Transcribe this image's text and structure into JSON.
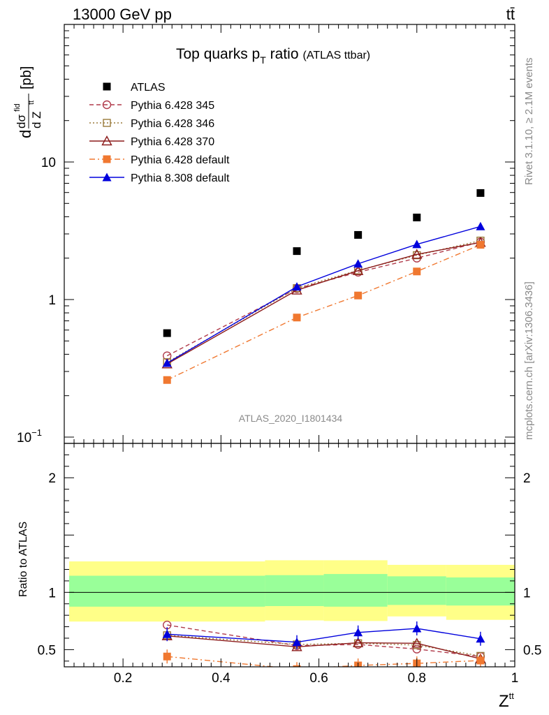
{
  "header": {
    "left": "13000 GeV pp",
    "right": "tt̄"
  },
  "side_text": {
    "rivet": "Rivet 3.1.10, ≥ 2.1M events",
    "mcplots": "mcplots.cern.ch [arXiv:1306.3436]"
  },
  "watermark": "ATLAS_2020_I1801434",
  "chart_data": {
    "type": "scatter",
    "title": "Top quarks p",
    "title_sub": "T",
    "title_tail": " ratio",
    "title_small": "(ATLAS ttbar)",
    "ylabel_main": {
      "pre": "d",
      "sigma": "dσ",
      "sup": "fid",
      "den": "d Z",
      "den_sup": "tt",
      "unit": "[pb]"
    },
    "ylabel_ratio": "Ratio to ATLAS",
    "xlabel": {
      "text": "Z",
      "sup": "tt"
    },
    "yscale_main": "log",
    "ylim_main": [
      0.09,
      100
    ],
    "ylim_ratio": [
      0.35,
      2.3
    ],
    "xlim": [
      0.08,
      1.0
    ],
    "x_ticks": [
      "0.2",
      "0.4",
      "0.6",
      "0.8",
      "1"
    ],
    "y_ticks_main": [
      "10",
      "1"
    ],
    "y_tick_main_low": {
      "base": "10",
      "exp": "−1"
    },
    "y_ticks_ratio": [
      "2",
      "1",
      "0.5"
    ],
    "legend_position": "top-left",
    "bins": [
      {
        "x0": 0.09,
        "x1": 0.49
      },
      {
        "x0": 0.49,
        "x1": 0.61
      },
      {
        "x0": 0.61,
        "x1": 0.74
      },
      {
        "x0": 0.74,
        "x1": 0.86
      },
      {
        "x0": 0.86,
        "x1": 1.0
      }
    ],
    "band_inner": [
      {
        "lo": 0.875,
        "hi": 1.145
      },
      {
        "lo": 0.88,
        "hi": 1.15
      },
      {
        "lo": 0.875,
        "hi": 1.16
      },
      {
        "lo": 0.89,
        "hi": 1.14
      },
      {
        "lo": 0.885,
        "hi": 1.13
      }
    ],
    "band_outer": [
      {
        "lo": 0.745,
        "hi": 1.27
      },
      {
        "lo": 0.755,
        "hi": 1.28
      },
      {
        "lo": 0.75,
        "hi": 1.28
      },
      {
        "lo": 0.79,
        "hi": 1.24
      },
      {
        "lo": 0.76,
        "hi": 1.24
      }
    ],
    "series": [
      {
        "name": "ATLAS",
        "color": "#000000",
        "marker": "square",
        "line": "none",
        "x": [
          0.29,
          0.555,
          0.68,
          0.8,
          0.93
        ],
        "y": [
          0.57,
          2.25,
          2.95,
          3.95,
          5.95
        ],
        "ratio": []
      },
      {
        "name": "Pythia 6.428 345",
        "color": "#b03a4a",
        "marker": "circle-open",
        "line": "dashed",
        "x": [
          0.29,
          0.555,
          0.68,
          0.8,
          0.93
        ],
        "y": [
          0.39,
          1.2,
          1.58,
          2.0,
          2.62
        ],
        "ratio": [
          0.715,
          0.535,
          0.545,
          0.505,
          0.44
        ]
      },
      {
        "name": "Pythia 6.428 346",
        "color": "#9a7a3a",
        "marker": "square-open",
        "line": "dotted",
        "x": [
          0.29,
          0.555,
          0.68,
          0.8,
          0.93
        ],
        "y": [
          0.35,
          1.21,
          1.63,
          2.1,
          2.68
        ],
        "ratio": [
          0.625,
          0.545,
          0.555,
          0.54,
          0.445
        ]
      },
      {
        "name": "Pythia 6.428 370",
        "color": "#8b1a1a",
        "marker": "triangle-open",
        "line": "solid",
        "x": [
          0.29,
          0.555,
          0.68,
          0.8,
          0.93
        ],
        "y": [
          0.34,
          1.17,
          1.62,
          2.13,
          2.6
        ],
        "ratio": [
          0.62,
          0.525,
          0.56,
          0.555,
          0.42
        ]
      },
      {
        "name": "Pythia 6.428 default",
        "color": "#f07830",
        "marker": "square",
        "line": "dashdot",
        "x": [
          0.29,
          0.555,
          0.68,
          0.8,
          0.93
        ],
        "y": [
          0.26,
          0.74,
          1.07,
          1.6,
          2.5
        ],
        "ratio": [
          0.44,
          0.33,
          0.362,
          0.38,
          0.405
        ]
      },
      {
        "name": "Pythia 8.308 default",
        "color": "#0000dd",
        "marker": "triangle",
        "line": "solid",
        "x": [
          0.29,
          0.555,
          0.68,
          0.8,
          0.93
        ],
        "y": [
          0.345,
          1.24,
          1.82,
          2.52,
          3.4
        ],
        "ratio": [
          0.635,
          0.565,
          0.65,
          0.685,
          0.595
        ]
      }
    ]
  }
}
